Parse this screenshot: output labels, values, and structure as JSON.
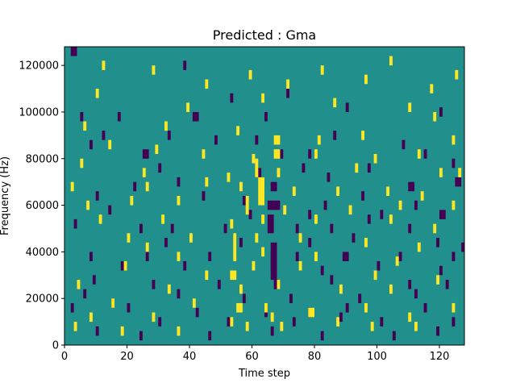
{
  "chart_data": {
    "type": "heatmap",
    "title": "Predicted : Gma",
    "xlabel": "Time step",
    "ylabel": "Frequency (Hz)",
    "xlim": [
      0,
      128
    ],
    "ylim": [
      0,
      128000
    ],
    "xticks": [
      0,
      20,
      40,
      60,
      80,
      100,
      120
    ],
    "yticks": [
      0,
      20000,
      40000,
      60000,
      80000,
      100000,
      120000
    ],
    "grid": false,
    "legend": "none",
    "colors": {
      "background": "#21908d",
      "low": "#440154",
      "high": "#fde725"
    },
    "cells": [
      [
        2,
        124000,
        2,
        4000,
        "low"
      ],
      [
        38,
        118000,
        1,
        4000,
        "low"
      ],
      [
        53,
        104000,
        1,
        4000,
        "low"
      ],
      [
        71,
        106000,
        1,
        4000,
        "low"
      ],
      [
        5,
        96000,
        1,
        4000,
        "low"
      ],
      [
        17,
        96000,
        1,
        4000,
        "low"
      ],
      [
        41,
        96000,
        2,
        4000,
        "low"
      ],
      [
        64,
        96000,
        1,
        4000,
        "low"
      ],
      [
        90,
        100000,
        1,
        4000,
        "low"
      ],
      [
        120,
        98000,
        1,
        4000,
        "low"
      ],
      [
        12,
        88000,
        1,
        4000,
        "low"
      ],
      [
        33,
        88000,
        1,
        4000,
        "low"
      ],
      [
        48,
        86000,
        1,
        4000,
        "low"
      ],
      [
        61,
        86000,
        1,
        4000,
        "low"
      ],
      [
        86,
        88000,
        1,
        4000,
        "low"
      ],
      [
        108,
        84000,
        1,
        4000,
        "low"
      ],
      [
        8,
        84000,
        1,
        4000,
        "low"
      ],
      [
        25,
        80000,
        2,
        4000,
        "low"
      ],
      [
        69,
        80000,
        1,
        4000,
        "low"
      ],
      [
        78,
        80000,
        1,
        4000,
        "low"
      ],
      [
        115,
        80000,
        1,
        4000,
        "low"
      ],
      [
        30,
        74000,
        1,
        4000,
        "low"
      ],
      [
        62,
        72000,
        1,
        4000,
        "low"
      ],
      [
        76,
        74000,
        1,
        4000,
        "low"
      ],
      [
        97,
        74000,
        1,
        4000,
        "low"
      ],
      [
        124,
        76000,
        1,
        4000,
        "low"
      ],
      [
        22,
        66000,
        1,
        4000,
        "low"
      ],
      [
        36,
        68000,
        1,
        4000,
        "low"
      ],
      [
        66,
        66000,
        2,
        4000,
        "low"
      ],
      [
        84,
        70000,
        1,
        4000,
        "low"
      ],
      [
        110,
        66000,
        2,
        4000,
        "low"
      ],
      [
        125,
        68000,
        2,
        4000,
        "low"
      ],
      [
        10,
        62000,
        1,
        4000,
        "low"
      ],
      [
        44,
        62000,
        1,
        4000,
        "low"
      ],
      [
        57,
        60000,
        1,
        4000,
        "low"
      ],
      [
        65,
        58000,
        4,
        4000,
        "low"
      ],
      [
        83,
        58000,
        1,
        4000,
        "low"
      ],
      [
        95,
        62000,
        1,
        4000,
        "low"
      ],
      [
        112,
        58000,
        1,
        4000,
        "low"
      ],
      [
        14,
        56000,
        1,
        4000,
        "low"
      ],
      [
        59,
        54000,
        1,
        4000,
        "low"
      ],
      [
        78,
        54000,
        1,
        4000,
        "low"
      ],
      [
        101,
        54000,
        1,
        4000,
        "low"
      ],
      [
        120,
        54000,
        2,
        4000,
        "low"
      ],
      [
        3,
        50000,
        1,
        4000,
        "low"
      ],
      [
        24,
        48000,
        1,
        4000,
        "low"
      ],
      [
        34,
        48000,
        1,
        4000,
        "low"
      ],
      [
        51,
        48000,
        1,
        4000,
        "low"
      ],
      [
        65,
        48000,
        2,
        8000,
        "low"
      ],
      [
        74,
        48000,
        1,
        4000,
        "low"
      ],
      [
        85,
        48000,
        1,
        4000,
        "low"
      ],
      [
        97,
        52000,
        1,
        4000,
        "low"
      ],
      [
        110,
        48000,
        1,
        4000,
        "low"
      ],
      [
        32,
        42000,
        1,
        4000,
        "low"
      ],
      [
        56,
        42000,
        1,
        4000,
        "low"
      ],
      [
        78,
        42000,
        1,
        4000,
        "low"
      ],
      [
        92,
        44000,
        1,
        4000,
        "low"
      ],
      [
        119,
        42000,
        1,
        4000,
        "low"
      ],
      [
        127,
        40000,
        1,
        4000,
        "low"
      ],
      [
        8,
        36000,
        1,
        4000,
        "low"
      ],
      [
        26,
        36000,
        1,
        4000,
        "low"
      ],
      [
        46,
        36000,
        1,
        4000,
        "low"
      ],
      [
        66,
        32000,
        2,
        12000,
        "low"
      ],
      [
        74,
        36000,
        1,
        4000,
        "low"
      ],
      [
        89,
        36000,
        2,
        4000,
        "low"
      ],
      [
        107,
        36000,
        1,
        4000,
        "low"
      ],
      [
        124,
        36000,
        1,
        4000,
        "low"
      ],
      [
        18,
        32000,
        1,
        4000,
        "low"
      ],
      [
        38,
        32000,
        1,
        4000,
        "low"
      ],
      [
        66,
        28000,
        2,
        12000,
        "low"
      ],
      [
        82,
        30000,
        1,
        4000,
        "low"
      ],
      [
        100,
        32000,
        1,
        4000,
        "low"
      ],
      [
        120,
        30000,
        1,
        4000,
        "low"
      ],
      [
        9,
        26000,
        1,
        4000,
        "low"
      ],
      [
        28,
        24000,
        1,
        4000,
        "low"
      ],
      [
        49,
        24000,
        1,
        4000,
        "low"
      ],
      [
        67,
        24000,
        2,
        4000,
        "low"
      ],
      [
        85,
        26000,
        1,
        4000,
        "low"
      ],
      [
        110,
        24000,
        1,
        4000,
        "low"
      ],
      [
        122,
        24000,
        1,
        4000,
        "low"
      ],
      [
        6,
        20000,
        1,
        4000,
        "low"
      ],
      [
        15,
        16000,
        1,
        4000,
        "low"
      ],
      [
        36,
        20000,
        1,
        4000,
        "low"
      ],
      [
        57,
        18000,
        1,
        4000,
        "low"
      ],
      [
        72,
        18000,
        1,
        4000,
        "low"
      ],
      [
        94,
        18000,
        1,
        4000,
        "low"
      ],
      [
        112,
        20000,
        1,
        4000,
        "low"
      ],
      [
        2,
        14000,
        1,
        4000,
        "low"
      ],
      [
        20,
        14000,
        1,
        4000,
        "low"
      ],
      [
        42,
        12000,
        1,
        4000,
        "low"
      ],
      [
        64,
        12000,
        1,
        4000,
        "low"
      ],
      [
        78,
        12000,
        1,
        4000,
        "low"
      ],
      [
        90,
        14000,
        1,
        4000,
        "low"
      ],
      [
        115,
        14000,
        1,
        4000,
        "low"
      ],
      [
        30,
        8000,
        1,
        4000,
        "low"
      ],
      [
        52,
        8000,
        1,
        4000,
        "low"
      ],
      [
        73,
        8000,
        1,
        4000,
        "low"
      ],
      [
        88,
        10000,
        1,
        4000,
        "low"
      ],
      [
        101,
        8000,
        1,
        4000,
        "low"
      ],
      [
        124,
        8000,
        1,
        4000,
        "low"
      ],
      [
        10,
        4000,
        1,
        4000,
        "low"
      ],
      [
        24,
        2000,
        1,
        4000,
        "low"
      ],
      [
        46,
        2000,
        1,
        4000,
        "low"
      ],
      [
        66,
        4000,
        1,
        4000,
        "low"
      ],
      [
        82,
        2000,
        1,
        4000,
        "low"
      ],
      [
        105,
        2000,
        1,
        4000,
        "low"
      ],
      [
        119,
        4000,
        1,
        4000,
        "low"
      ],
      [
        12,
        118000,
        1,
        4000,
        "high"
      ],
      [
        28,
        116000,
        1,
        4000,
        "high"
      ],
      [
        45,
        110000,
        1,
        4000,
        "high"
      ],
      [
        59,
        114000,
        1,
        4000,
        "high"
      ],
      [
        71,
        110000,
        1,
        4000,
        "high"
      ],
      [
        82,
        116000,
        1,
        4000,
        "high"
      ],
      [
        96,
        112000,
        1,
        4000,
        "high"
      ],
      [
        104,
        120000,
        1,
        4000,
        "high"
      ],
      [
        117,
        108000,
        1,
        4000,
        "high"
      ],
      [
        125,
        114000,
        1,
        4000,
        "high"
      ],
      [
        10,
        106000,
        1,
        4000,
        "high"
      ],
      [
        39,
        100000,
        1,
        4000,
        "high"
      ],
      [
        63,
        104000,
        1,
        4000,
        "high"
      ],
      [
        86,
        102000,
        1,
        4000,
        "high"
      ],
      [
        110,
        100000,
        1,
        4000,
        "high"
      ],
      [
        118,
        96000,
        1,
        4000,
        "high"
      ],
      [
        6,
        92000,
        1,
        4000,
        "high"
      ],
      [
        32,
        92000,
        1,
        4000,
        "high"
      ],
      [
        55,
        90000,
        1,
        4000,
        "high"
      ],
      [
        67,
        86000,
        2,
        4000,
        "high"
      ],
      [
        81,
        86000,
        1,
        4000,
        "high"
      ],
      [
        95,
        88000,
        1,
        4000,
        "high"
      ],
      [
        124,
        86000,
        1,
        4000,
        "high"
      ],
      [
        14,
        84000,
        1,
        4000,
        "high"
      ],
      [
        29,
        82000,
        1,
        4000,
        "high"
      ],
      [
        44,
        80000,
        1,
        4000,
        "high"
      ],
      [
        60,
        78000,
        1,
        4000,
        "high"
      ],
      [
        67,
        80000,
        2,
        4000,
        "high"
      ],
      [
        80,
        80000,
        1,
        4000,
        "high"
      ],
      [
        99,
        78000,
        1,
        4000,
        "high"
      ],
      [
        113,
        80000,
        1,
        4000,
        "high"
      ],
      [
        5,
        76000,
        1,
        4000,
        "high"
      ],
      [
        25,
        72000,
        1,
        4000,
        "high"
      ],
      [
        52,
        70000,
        1,
        4000,
        "high"
      ],
      [
        61,
        72000,
        1,
        8000,
        "high"
      ],
      [
        68,
        72000,
        1,
        4000,
        "high"
      ],
      [
        93,
        74000,
        1,
        4000,
        "high"
      ],
      [
        120,
        72000,
        1,
        4000,
        "high"
      ],
      [
        126,
        72000,
        1,
        4000,
        "high"
      ],
      [
        2,
        66000,
        1,
        4000,
        "high"
      ],
      [
        26,
        66000,
        1,
        4000,
        "high"
      ],
      [
        45,
        68000,
        1,
        4000,
        "high"
      ],
      [
        56,
        66000,
        1,
        4000,
        "high"
      ],
      [
        62,
        60000,
        2,
        12000,
        "high"
      ],
      [
        73,
        64000,
        1,
        4000,
        "high"
      ],
      [
        87,
        64000,
        1,
        4000,
        "high"
      ],
      [
        103,
        64000,
        1,
        4000,
        "high"
      ],
      [
        114,
        62000,
        1,
        4000,
        "high"
      ],
      [
        7,
        58000,
        1,
        4000,
        "high"
      ],
      [
        21,
        60000,
        1,
        4000,
        "high"
      ],
      [
        36,
        60000,
        1,
        4000,
        "high"
      ],
      [
        58,
        56000,
        1,
        8000,
        "high"
      ],
      [
        70,
        56000,
        1,
        4000,
        "high"
      ],
      [
        91,
        56000,
        1,
        4000,
        "high"
      ],
      [
        107,
        58000,
        1,
        4000,
        "high"
      ],
      [
        124,
        58000,
        1,
        4000,
        "high"
      ],
      [
        11,
        52000,
        1,
        4000,
        "high"
      ],
      [
        31,
        52000,
        1,
        4000,
        "high"
      ],
      [
        53,
        50000,
        1,
        4000,
        "high"
      ],
      [
        63,
        52000,
        1,
        4000,
        "high"
      ],
      [
        80,
        52000,
        1,
        4000,
        "high"
      ],
      [
        104,
        52000,
        1,
        4000,
        "high"
      ],
      [
        118,
        48000,
        1,
        4000,
        "high"
      ],
      [
        20,
        44000,
        1,
        4000,
        "high"
      ],
      [
        40,
        44000,
        1,
        4000,
        "high"
      ],
      [
        54,
        36000,
        1,
        12000,
        "high"
      ],
      [
        61,
        44000,
        1,
        4000,
        "high"
      ],
      [
        75,
        44000,
        1,
        4000,
        "high"
      ],
      [
        96,
        42000,
        1,
        4000,
        "high"
      ],
      [
        113,
        40000,
        1,
        4000,
        "high"
      ],
      [
        26,
        40000,
        1,
        4000,
        "high"
      ],
      [
        36,
        36000,
        1,
        4000,
        "high"
      ],
      [
        63,
        38000,
        1,
        4000,
        "high"
      ],
      [
        80,
        36000,
        1,
        4000,
        "high"
      ],
      [
        106,
        34000,
        1,
        4000,
        "high"
      ],
      [
        19,
        32000,
        1,
        4000,
        "high"
      ],
      [
        45,
        28000,
        1,
        4000,
        "high"
      ],
      [
        53,
        28000,
        2,
        4000,
        "high"
      ],
      [
        60,
        32000,
        1,
        4000,
        "high"
      ],
      [
        75,
        32000,
        1,
        4000,
        "high"
      ],
      [
        99,
        28000,
        1,
        4000,
        "high"
      ],
      [
        119,
        26000,
        1,
        4000,
        "high"
      ],
      [
        4,
        24000,
        1,
        4000,
        "high"
      ],
      [
        33,
        22000,
        1,
        4000,
        "high"
      ],
      [
        56,
        22000,
        1,
        4000,
        "high"
      ],
      [
        68,
        24000,
        1,
        4000,
        "high"
      ],
      [
        88,
        22000,
        1,
        4000,
        "high"
      ],
      [
        104,
        22000,
        1,
        4000,
        "high"
      ],
      [
        15,
        16000,
        1,
        4000,
        "high"
      ],
      [
        41,
        16000,
        1,
        4000,
        "high"
      ],
      [
        55,
        14000,
        2,
        4000,
        "high"
      ],
      [
        64,
        14000,
        1,
        4000,
        "high"
      ],
      [
        78,
        12000,
        2,
        4000,
        "high"
      ],
      [
        96,
        14000,
        1,
        4000,
        "high"
      ],
      [
        124,
        14000,
        1,
        4000,
        "high"
      ],
      [
        8,
        10000,
        1,
        4000,
        "high"
      ],
      [
        28,
        10000,
        1,
        4000,
        "high"
      ],
      [
        53,
        8000,
        1,
        4000,
        "high"
      ],
      [
        66,
        10000,
        1,
        4000,
        "high"
      ],
      [
        87,
        8000,
        1,
        4000,
        "high"
      ],
      [
        110,
        10000,
        1,
        4000,
        "high"
      ],
      [
        3,
        6000,
        1,
        4000,
        "high"
      ],
      [
        18,
        4000,
        1,
        4000,
        "high"
      ],
      [
        36,
        4000,
        1,
        4000,
        "high"
      ],
      [
        58,
        6000,
        1,
        4000,
        "high"
      ],
      [
        69,
        6000,
        1,
        4000,
        "high"
      ],
      [
        98,
        6000,
        1,
        4000,
        "high"
      ],
      [
        112,
        6000,
        1,
        4000,
        "high"
      ]
    ]
  }
}
